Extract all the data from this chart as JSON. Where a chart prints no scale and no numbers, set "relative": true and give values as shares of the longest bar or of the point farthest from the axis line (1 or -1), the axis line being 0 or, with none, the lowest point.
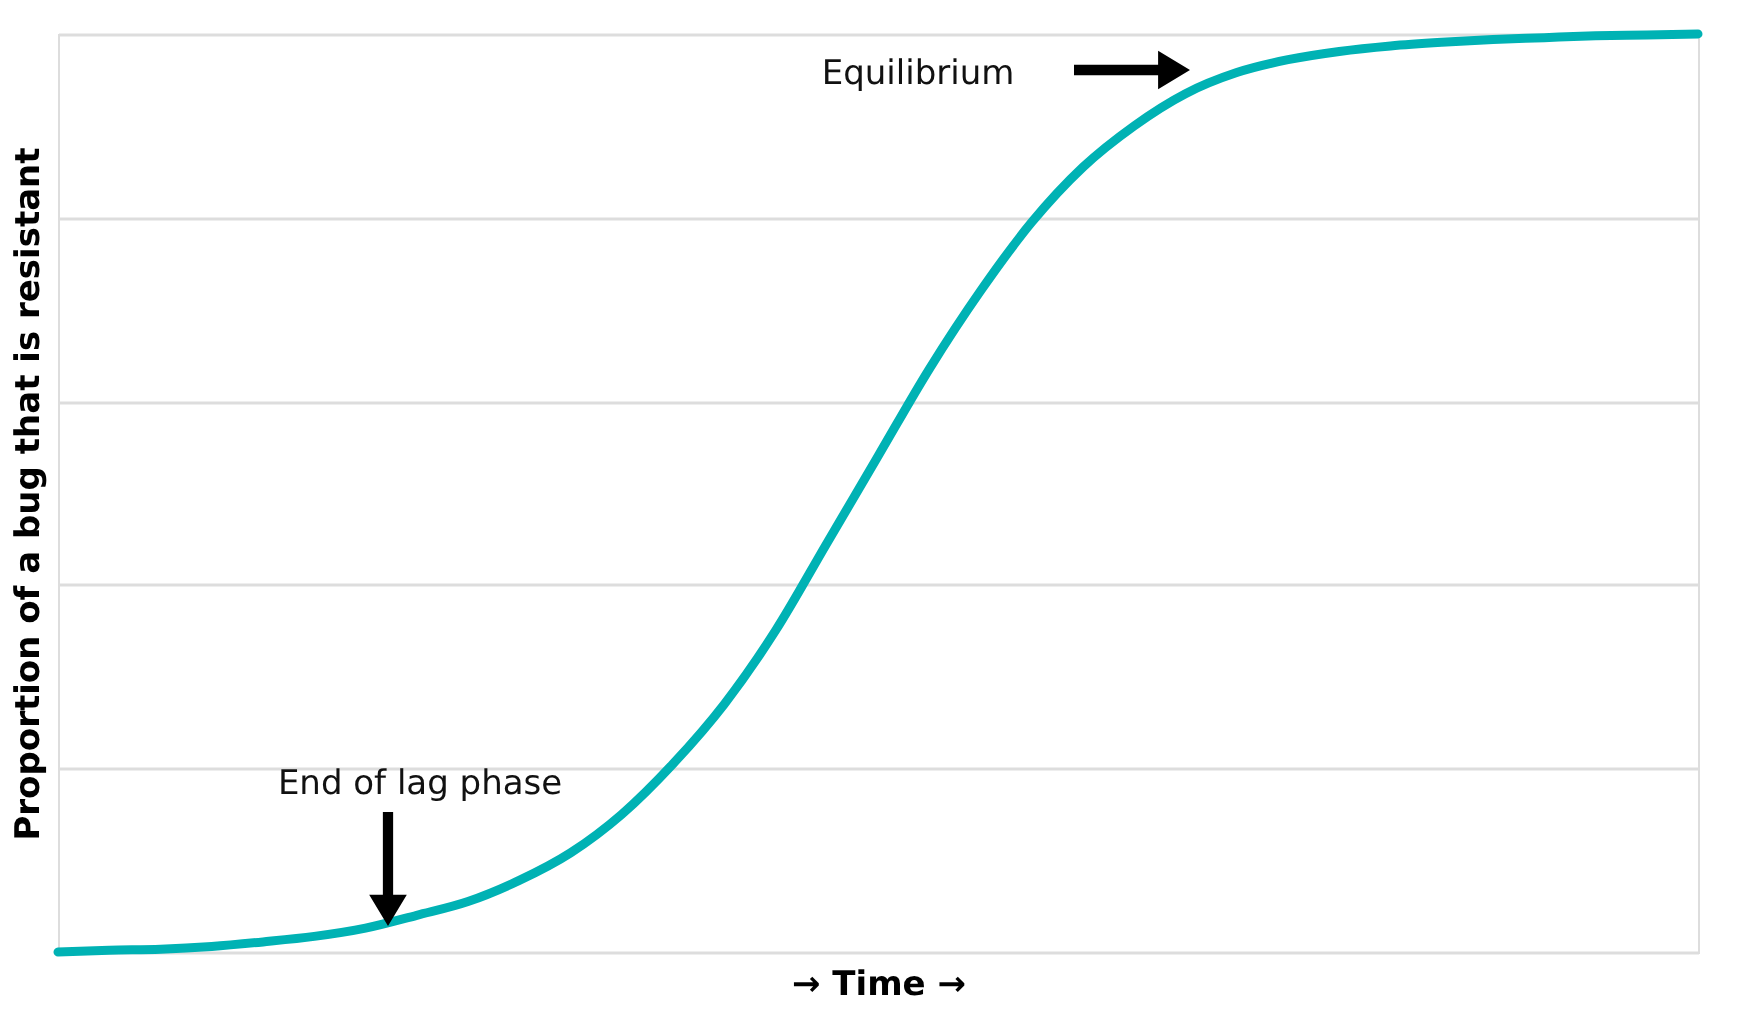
{
  "chart_data": {
    "type": "line",
    "relative": true,
    "xlabel": "→ Time →",
    "ylabel": "Proportion of a bug that is resistant",
    "categories": [
      null,
      null,
      null,
      null,
      null,
      null,
      null,
      null,
      null,
      null,
      null,
      null,
      null,
      null,
      null,
      null,
      null,
      null,
      null,
      null,
      null,
      null,
      null,
      null,
      null,
      null,
      null,
      null,
      null,
      null,
      null,
      null,
      null
    ],
    "series": [
      {
        "color": "#00b2b4",
        "values": [
          0,
          0.002,
          0.003,
          0.006,
          0.011,
          0.017,
          0.026,
          0.04,
          0.055,
          0.078,
          0.108,
          0.15,
          0.205,
          0.27,
          0.35,
          0.445,
          0.54,
          0.635,
          0.72,
          0.795,
          0.855,
          0.9,
          0.935,
          0.958,
          0.972,
          0.981,
          0.987,
          0.991,
          0.994,
          0.996,
          0.998,
          0.999,
          1.0
        ]
      }
    ],
    "annotations": [
      "Equilibrium",
      "End of lag phase"
    ],
    "grid": "y",
    "marker": "none",
    "line_style": "solid",
    "tick_labels": false
  }
}
